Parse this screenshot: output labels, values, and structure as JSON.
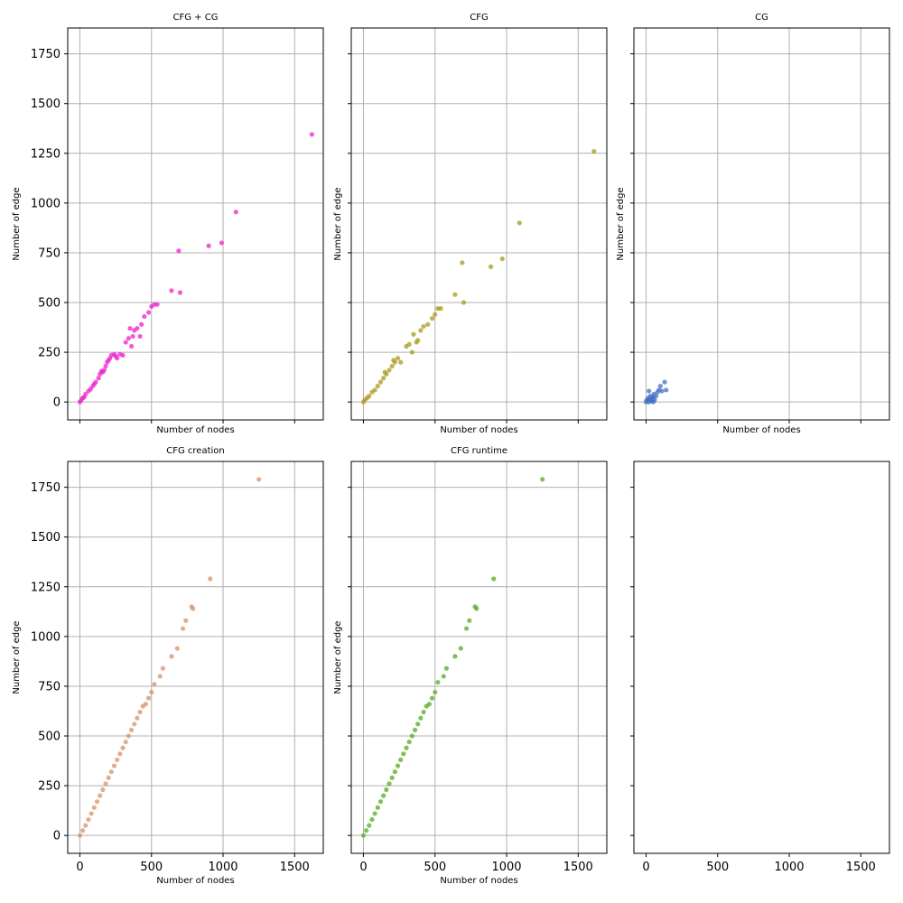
{
  "chart_data": [
    {
      "type": "scatter",
      "title": "CFG + CG",
      "xlabel": "Number of nodes",
      "ylabel": "Number of edge",
      "color": "#ee22cc",
      "xlim": [
        -85,
        1700
      ],
      "ylim": [
        -90,
        1880
      ],
      "xticks": [
        0,
        500,
        1000,
        1500
      ],
      "yticks": [
        0,
        250,
        500,
        750,
        1000,
        1250,
        1500,
        1750
      ],
      "show_xtick_labels": false,
      "show_ytick_labels": true,
      "grid": true,
      "points": [
        [
          0,
          0
        ],
        [
          10,
          10
        ],
        [
          20,
          20
        ],
        [
          30,
          25
        ],
        [
          40,
          40
        ],
        [
          60,
          55
        ],
        [
          75,
          65
        ],
        [
          90,
          80
        ],
        [
          100,
          90
        ],
        [
          110,
          100
        ],
        [
          130,
          120
        ],
        [
          140,
          140
        ],
        [
          150,
          155
        ],
        [
          160,
          150
        ],
        [
          170,
          160
        ],
        [
          180,
          180
        ],
        [
          190,
          200
        ],
        [
          200,
          210
        ],
        [
          210,
          220
        ],
        [
          220,
          235
        ],
        [
          240,
          240
        ],
        [
          250,
          230
        ],
        [
          260,
          220
        ],
        [
          280,
          240
        ],
        [
          300,
          235
        ],
        [
          320,
          300
        ],
        [
          340,
          320
        ],
        [
          350,
          370
        ],
        [
          360,
          280
        ],
        [
          370,
          330
        ],
        [
          380,
          360
        ],
        [
          400,
          370
        ],
        [
          420,
          330
        ],
        [
          430,
          390
        ],
        [
          450,
          430
        ],
        [
          480,
          450
        ],
        [
          500,
          480
        ],
        [
          520,
          490
        ],
        [
          540,
          490
        ],
        [
          640,
          560
        ],
        [
          690,
          760
        ],
        [
          700,
          550
        ],
        [
          900,
          785
        ],
        [
          990,
          800
        ],
        [
          1090,
          955
        ],
        [
          1620,
          1345
        ]
      ]
    },
    {
      "type": "scatter",
      "title": "CFG",
      "xlabel": "Number of nodes",
      "ylabel": "Number of edge",
      "color": "#a89a1e",
      "xlim": [
        -85,
        1700
      ],
      "ylim": [
        -90,
        1880
      ],
      "xticks": [
        0,
        500,
        1000,
        1500
      ],
      "yticks": [
        0,
        250,
        500,
        750,
        1000,
        1250,
        1500,
        1750
      ],
      "show_xtick_labels": false,
      "show_ytick_labels": false,
      "grid": true,
      "points": [
        [
          0,
          0
        ],
        [
          10,
          10
        ],
        [
          25,
          20
        ],
        [
          40,
          30
        ],
        [
          60,
          50
        ],
        [
          80,
          60
        ],
        [
          100,
          80
        ],
        [
          120,
          100
        ],
        [
          140,
          120
        ],
        [
          150,
          150
        ],
        [
          160,
          140
        ],
        [
          180,
          160
        ],
        [
          200,
          180
        ],
        [
          210,
          210
        ],
        [
          220,
          200
        ],
        [
          240,
          220
        ],
        [
          260,
          200
        ],
        [
          300,
          280
        ],
        [
          320,
          290
        ],
        [
          340,
          250
        ],
        [
          350,
          340
        ],
        [
          370,
          300
        ],
        [
          380,
          310
        ],
        [
          400,
          360
        ],
        [
          420,
          380
        ],
        [
          450,
          390
        ],
        [
          480,
          420
        ],
        [
          500,
          440
        ],
        [
          520,
          470
        ],
        [
          540,
          470
        ],
        [
          640,
          540
        ],
        [
          690,
          700
        ],
        [
          700,
          500
        ],
        [
          890,
          680
        ],
        [
          970,
          720
        ],
        [
          1090,
          900
        ],
        [
          1610,
          1260
        ]
      ]
    },
    {
      "type": "scatter",
      "title": "CG",
      "xlabel": "Number of nodes",
      "ylabel": "Number of edge",
      "color": "#4470c4",
      "xlim": [
        -85,
        1700
      ],
      "ylim": [
        -90,
        1880
      ],
      "xticks": [
        0,
        500,
        1000,
        1500
      ],
      "yticks": [
        0,
        250,
        500,
        750,
        1000,
        1250,
        1500,
        1750
      ],
      "show_xtick_labels": false,
      "show_ytick_labels": false,
      "grid": true,
      "points": [
        [
          0,
          0
        ],
        [
          5,
          10
        ],
        [
          10,
          5
        ],
        [
          15,
          20
        ],
        [
          20,
          0
        ],
        [
          25,
          15
        ],
        [
          30,
          30
        ],
        [
          35,
          10
        ],
        [
          40,
          5
        ],
        [
          45,
          25
        ],
        [
          50,
          20
        ],
        [
          55,
          40
        ],
        [
          60,
          10
        ],
        [
          70,
          30
        ],
        [
          80,
          50
        ],
        [
          90,
          60
        ],
        [
          100,
          80
        ],
        [
          110,
          55
        ],
        [
          130,
          100
        ],
        [
          140,
          60
        ],
        [
          20,
          55
        ],
        [
          50,
          0
        ]
      ]
    },
    {
      "type": "scatter",
      "title": "CFG creation",
      "xlabel": "Number of nodes",
      "ylabel": "Number of edge",
      "color": "#d4936a",
      "xlim": [
        -85,
        1700
      ],
      "ylim": [
        -90,
        1880
      ],
      "xticks": [
        0,
        500,
        1000,
        1500
      ],
      "yticks": [
        0,
        250,
        500,
        750,
        1000,
        1250,
        1500,
        1750
      ],
      "show_xtick_labels": true,
      "show_ytick_labels": true,
      "grid": true,
      "points": [
        [
          0,
          0
        ],
        [
          20,
          25
        ],
        [
          40,
          50
        ],
        [
          60,
          80
        ],
        [
          80,
          110
        ],
        [
          100,
          140
        ],
        [
          120,
          170
        ],
        [
          140,
          200
        ],
        [
          160,
          230
        ],
        [
          180,
          260
        ],
        [
          200,
          290
        ],
        [
          220,
          320
        ],
        [
          240,
          350
        ],
        [
          260,
          380
        ],
        [
          280,
          410
        ],
        [
          300,
          440
        ],
        [
          320,
          470
        ],
        [
          340,
          500
        ],
        [
          360,
          530
        ],
        [
          380,
          560
        ],
        [
          400,
          590
        ],
        [
          420,
          620
        ],
        [
          440,
          650
        ],
        [
          460,
          660
        ],
        [
          480,
          690
        ],
        [
          500,
          720
        ],
        [
          520,
          760
        ],
        [
          560,
          800
        ],
        [
          580,
          840
        ],
        [
          640,
          900
        ],
        [
          680,
          940
        ],
        [
          720,
          1040
        ],
        [
          740,
          1080
        ],
        [
          780,
          1150
        ],
        [
          790,
          1140
        ],
        [
          910,
          1290
        ],
        [
          1250,
          1790
        ]
      ]
    },
    {
      "type": "scatter",
      "title": "CFG runtime",
      "xlabel": "Number of nodes",
      "ylabel": "Number of edge",
      "color": "#55aa22",
      "xlim": [
        -85,
        1700
      ],
      "ylim": [
        -90,
        1880
      ],
      "xticks": [
        0,
        500,
        1000,
        1500
      ],
      "yticks": [
        0,
        250,
        500,
        750,
        1000,
        1250,
        1500,
        1750
      ],
      "show_xtick_labels": true,
      "show_ytick_labels": false,
      "grid": true,
      "points": [
        [
          0,
          0
        ],
        [
          20,
          25
        ],
        [
          40,
          50
        ],
        [
          60,
          80
        ],
        [
          80,
          110
        ],
        [
          100,
          140
        ],
        [
          120,
          170
        ],
        [
          140,
          200
        ],
        [
          160,
          230
        ],
        [
          180,
          260
        ],
        [
          200,
          290
        ],
        [
          220,
          320
        ],
        [
          240,
          350
        ],
        [
          260,
          380
        ],
        [
          280,
          410
        ],
        [
          300,
          440
        ],
        [
          320,
          470
        ],
        [
          340,
          500
        ],
        [
          360,
          530
        ],
        [
          380,
          560
        ],
        [
          400,
          590
        ],
        [
          420,
          620
        ],
        [
          440,
          650
        ],
        [
          460,
          660
        ],
        [
          480,
          690
        ],
        [
          500,
          720
        ],
        [
          520,
          770
        ],
        [
          560,
          800
        ],
        [
          580,
          840
        ],
        [
          640,
          900
        ],
        [
          680,
          940
        ],
        [
          720,
          1040
        ],
        [
          740,
          1080
        ],
        [
          780,
          1150
        ],
        [
          790,
          1140
        ],
        [
          910,
          1290
        ],
        [
          1250,
          1790
        ]
      ]
    },
    {
      "type": "scatter",
      "title": "",
      "xlabel": "",
      "ylabel": "",
      "color": "#000000",
      "xlim": [
        -85,
        1700
      ],
      "ylim": [
        -90,
        1880
      ],
      "xticks": [
        0,
        500,
        1000,
        1500
      ],
      "yticks": [
        0,
        250,
        500,
        750,
        1000,
        1250,
        1500,
        1750
      ],
      "show_xtick_labels": true,
      "show_ytick_labels": false,
      "grid": false,
      "points": []
    }
  ]
}
